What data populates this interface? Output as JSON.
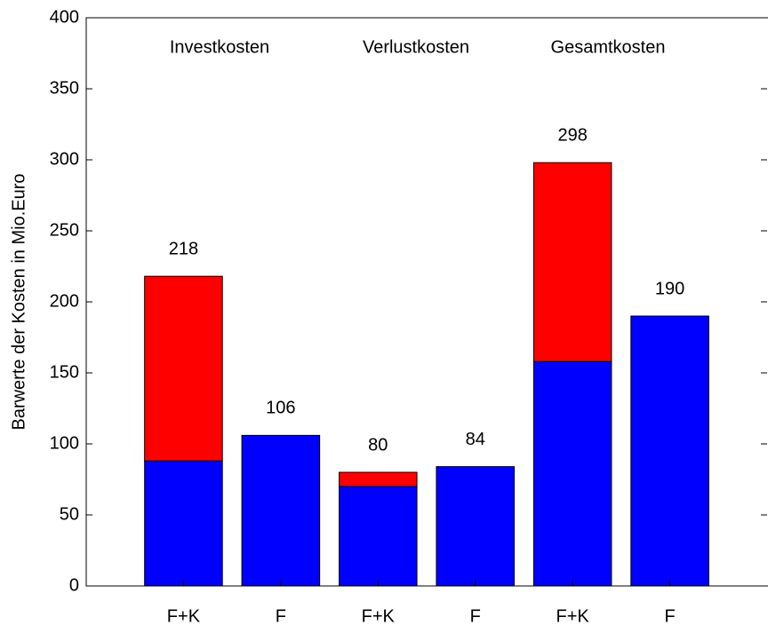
{
  "chart_data": {
    "type": "stacked_bar",
    "ylabel": "Barwerte der Kosten in Mio.Euro",
    "categories": [
      "F+K",
      "F",
      "F+K",
      "F",
      "F+K",
      "F"
    ],
    "series": [
      {
        "color": "#0000ff",
        "values": [
          88,
          106,
          70,
          84,
          158,
          190
        ]
      },
      {
        "color": "#ff0000",
        "values": [
          130,
          null,
          10,
          null,
          140,
          null
        ]
      }
    ],
    "totals": [
      218,
      106,
      80,
      84,
      298,
      190
    ],
    "annotations": [
      "Investkosten",
      "Verlustkosten",
      "Gesamtkosten"
    ],
    "ylim": [
      0,
      400
    ],
    "yticks": [
      0,
      50,
      100,
      150,
      200,
      250,
      300,
      350,
      400
    ],
    "grid": false
  }
}
